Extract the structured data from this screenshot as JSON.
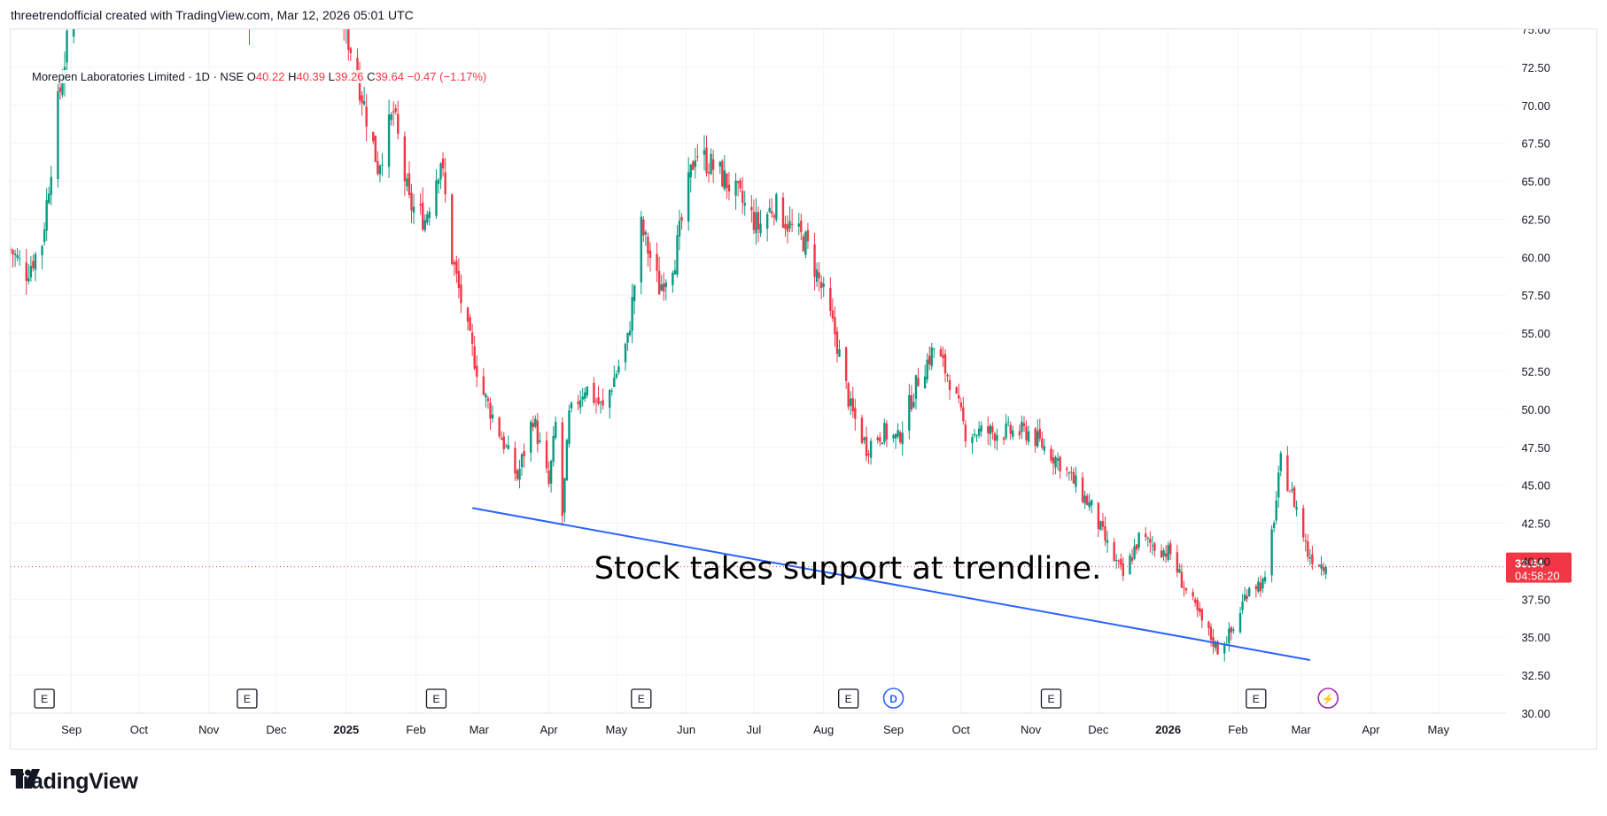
{
  "header": {
    "credit": "threetrendofficial created with TradingView.com, Mar 12, 2026 05:01 UTC"
  },
  "legend": {
    "symbol": "Morepen Laboratories Limited · 1D · NSE",
    "open_label": "O",
    "open": "40.22",
    "high_label": "H",
    "high": "40.39",
    "low_label": "L",
    "low": "39.26",
    "close_label": "C",
    "close": "39.64",
    "change": "−0.47 (−1.17%)"
  },
  "price_tag": {
    "price": "39.64",
    "countdown": "04:58:20"
  },
  "annotation": {
    "text": "Stock takes support at trendline."
  },
  "footer": {
    "brand": "TradingView"
  },
  "colors": {
    "up": "#089981",
    "down": "#f23645",
    "trendline": "#2962ff",
    "grid": "#f0f3fa",
    "dividend": "#2962ff",
    "split": "#9c27b0"
  },
  "event_markers": [
    {
      "label": "E",
      "type": "earnings",
      "date": "2024-08-20"
    },
    {
      "label": "E",
      "type": "earnings",
      "date": "2024-11-18"
    },
    {
      "label": "E",
      "type": "earnings",
      "date": "2025-02-10"
    },
    {
      "label": "E",
      "type": "earnings",
      "date": "2025-05-12"
    },
    {
      "label": "E",
      "type": "earnings",
      "date": "2025-08-12"
    },
    {
      "label": "D",
      "type": "dividend",
      "date": "2025-09-01"
    },
    {
      "label": "E",
      "type": "earnings",
      "date": "2025-11-10"
    },
    {
      "label": "E",
      "type": "earnings",
      "date": "2026-02-09"
    },
    {
      "label": "⚡",
      "type": "event",
      "date": "2026-03-13"
    }
  ],
  "chart_data": {
    "type": "candlestick",
    "title": "Morepen Laboratories Limited · 1D · NSE",
    "x_tick_labels": [
      {
        "label": "Sep",
        "date": "2024-09-01"
      },
      {
        "label": "Oct",
        "date": "2024-10-01"
      },
      {
        "label": "Nov",
        "date": "2024-11-01"
      },
      {
        "label": "Dec",
        "date": "2024-12-01"
      },
      {
        "label": "2025",
        "date": "2025-01-01",
        "bold": true
      },
      {
        "label": "Feb",
        "date": "2025-02-01"
      },
      {
        "label": "Mar",
        "date": "2025-03-01"
      },
      {
        "label": "Apr",
        "date": "2025-04-01"
      },
      {
        "label": "May",
        "date": "2025-05-01"
      },
      {
        "label": "Jun",
        "date": "2025-06-01"
      },
      {
        "label": "Jul",
        "date": "2025-07-01"
      },
      {
        "label": "Aug",
        "date": "2025-08-01"
      },
      {
        "label": "Sep",
        "date": "2025-09-01"
      },
      {
        "label": "Oct",
        "date": "2025-10-01"
      },
      {
        "label": "Nov",
        "date": "2025-11-01"
      },
      {
        "label": "Dec",
        "date": "2025-12-01"
      },
      {
        "label": "2026",
        "date": "2026-01-01",
        "bold": true
      },
      {
        "label": "Feb",
        "date": "2026-02-01"
      },
      {
        "label": "Mar",
        "date": "2026-03-01"
      },
      {
        "label": "Apr",
        "date": "2026-04-01"
      },
      {
        "label": "May",
        "date": "2026-05-01"
      }
    ],
    "y_tick_labels": [
      "30.00",
      "32.50",
      "35.00",
      "37.50",
      "40.00",
      "42.50",
      "45.00",
      "47.50",
      "50.00",
      "52.50",
      "55.00",
      "57.50",
      "60.00",
      "62.50",
      "65.00",
      "67.50",
      "70.00",
      "72.50",
      "75.00"
    ],
    "ylim": [
      30,
      75
    ],
    "xlim": [
      "2024-08-05",
      "2026-05-31"
    ],
    "price_anchors": [
      {
        "date": "2024-08-05",
        "close": 60.5
      },
      {
        "date": "2024-08-12",
        "close": 59.0
      },
      {
        "date": "2024-08-19",
        "close": 61.0
      },
      {
        "date": "2024-08-26",
        "close": 70.0
      },
      {
        "date": "2024-09-03",
        "close": 78.0
      },
      {
        "date": "2024-10-10",
        "close": 82.0
      },
      {
        "date": "2024-11-20",
        "close": 76.0
      },
      {
        "date": "2024-12-20",
        "close": 82.0
      },
      {
        "date": "2025-01-06",
        "close": 72.0
      },
      {
        "date": "2025-01-15",
        "close": 66.0
      },
      {
        "date": "2025-01-22",
        "close": 69.5
      },
      {
        "date": "2025-01-29",
        "close": 63.5
      },
      {
        "date": "2025-02-05",
        "close": 62.5
      },
      {
        "date": "2025-02-12",
        "close": 66.5
      },
      {
        "date": "2025-02-17",
        "close": 60.0
      },
      {
        "date": "2025-02-24",
        "close": 55.0
      },
      {
        "date": "2025-03-03",
        "close": 51.0
      },
      {
        "date": "2025-03-10",
        "close": 48.5
      },
      {
        "date": "2025-03-18",
        "close": 45.5
      },
      {
        "date": "2025-03-25",
        "close": 49.5
      },
      {
        "date": "2025-04-01",
        "close": 45.0
      },
      {
        "date": "2025-04-04",
        "close": 49.0
      },
      {
        "date": "2025-04-07",
        "close": 43.0
      },
      {
        "date": "2025-04-10",
        "close": 49.5
      },
      {
        "date": "2025-04-17",
        "close": 51.5
      },
      {
        "date": "2025-04-25",
        "close": 50.0
      },
      {
        "date": "2025-05-06",
        "close": 54.5
      },
      {
        "date": "2025-05-12",
        "close": 62.0
      },
      {
        "date": "2025-05-20",
        "close": 58.0
      },
      {
        "date": "2025-05-27",
        "close": 60.0
      },
      {
        "date": "2025-06-05",
        "close": 67.0
      },
      {
        "date": "2025-06-16",
        "close": 65.5
      },
      {
        "date": "2025-06-24",
        "close": 64.0
      },
      {
        "date": "2025-07-03",
        "close": 62.0
      },
      {
        "date": "2025-07-10",
        "close": 63.5
      },
      {
        "date": "2025-07-17",
        "close": 62.0
      },
      {
        "date": "2025-07-24",
        "close": 61.0
      },
      {
        "date": "2025-07-30",
        "close": 58.5
      },
      {
        "date": "2025-08-06",
        "close": 55.0
      },
      {
        "date": "2025-08-13",
        "close": 50.0
      },
      {
        "date": "2025-08-20",
        "close": 47.5
      },
      {
        "date": "2025-08-27",
        "close": 48.5
      },
      {
        "date": "2025-09-03",
        "close": 48.0
      },
      {
        "date": "2025-09-12",
        "close": 52.0
      },
      {
        "date": "2025-09-19",
        "close": 54.0
      },
      {
        "date": "2025-09-26",
        "close": 52.0
      },
      {
        "date": "2025-10-03",
        "close": 48.5
      },
      {
        "date": "2025-10-17",
        "close": 48.5
      },
      {
        "date": "2025-10-31",
        "close": 48.5
      },
      {
        "date": "2025-11-14",
        "close": 46.5
      },
      {
        "date": "2025-11-28",
        "close": 43.5
      },
      {
        "date": "2025-12-05",
        "close": 41.0
      },
      {
        "date": "2025-12-12",
        "close": 39.0
      },
      {
        "date": "2025-12-19",
        "close": 41.5
      },
      {
        "date": "2026-01-02",
        "close": 40.5
      },
      {
        "date": "2026-01-09",
        "close": 38.0
      },
      {
        "date": "2026-01-16",
        "close": 36.0
      },
      {
        "date": "2026-01-23",
        "close": 34.2
      },
      {
        "date": "2026-01-30",
        "close": 35.5
      },
      {
        "date": "2026-02-06",
        "close": 38.5
      },
      {
        "date": "2026-02-13",
        "close": 38.5
      },
      {
        "date": "2026-02-18",
        "close": 44.0
      },
      {
        "date": "2026-02-20",
        "close": 46.5
      },
      {
        "date": "2026-02-27",
        "close": 43.5
      },
      {
        "date": "2026-03-04",
        "close": 40.5
      },
      {
        "date": "2026-03-12",
        "close": 39.64
      }
    ],
    "trendline": {
      "start": {
        "date": "2025-02-26",
        "price": 43.5
      },
      "end": {
        "date": "2026-03-05",
        "price": 33.5
      }
    },
    "last_price": 39.64
  }
}
